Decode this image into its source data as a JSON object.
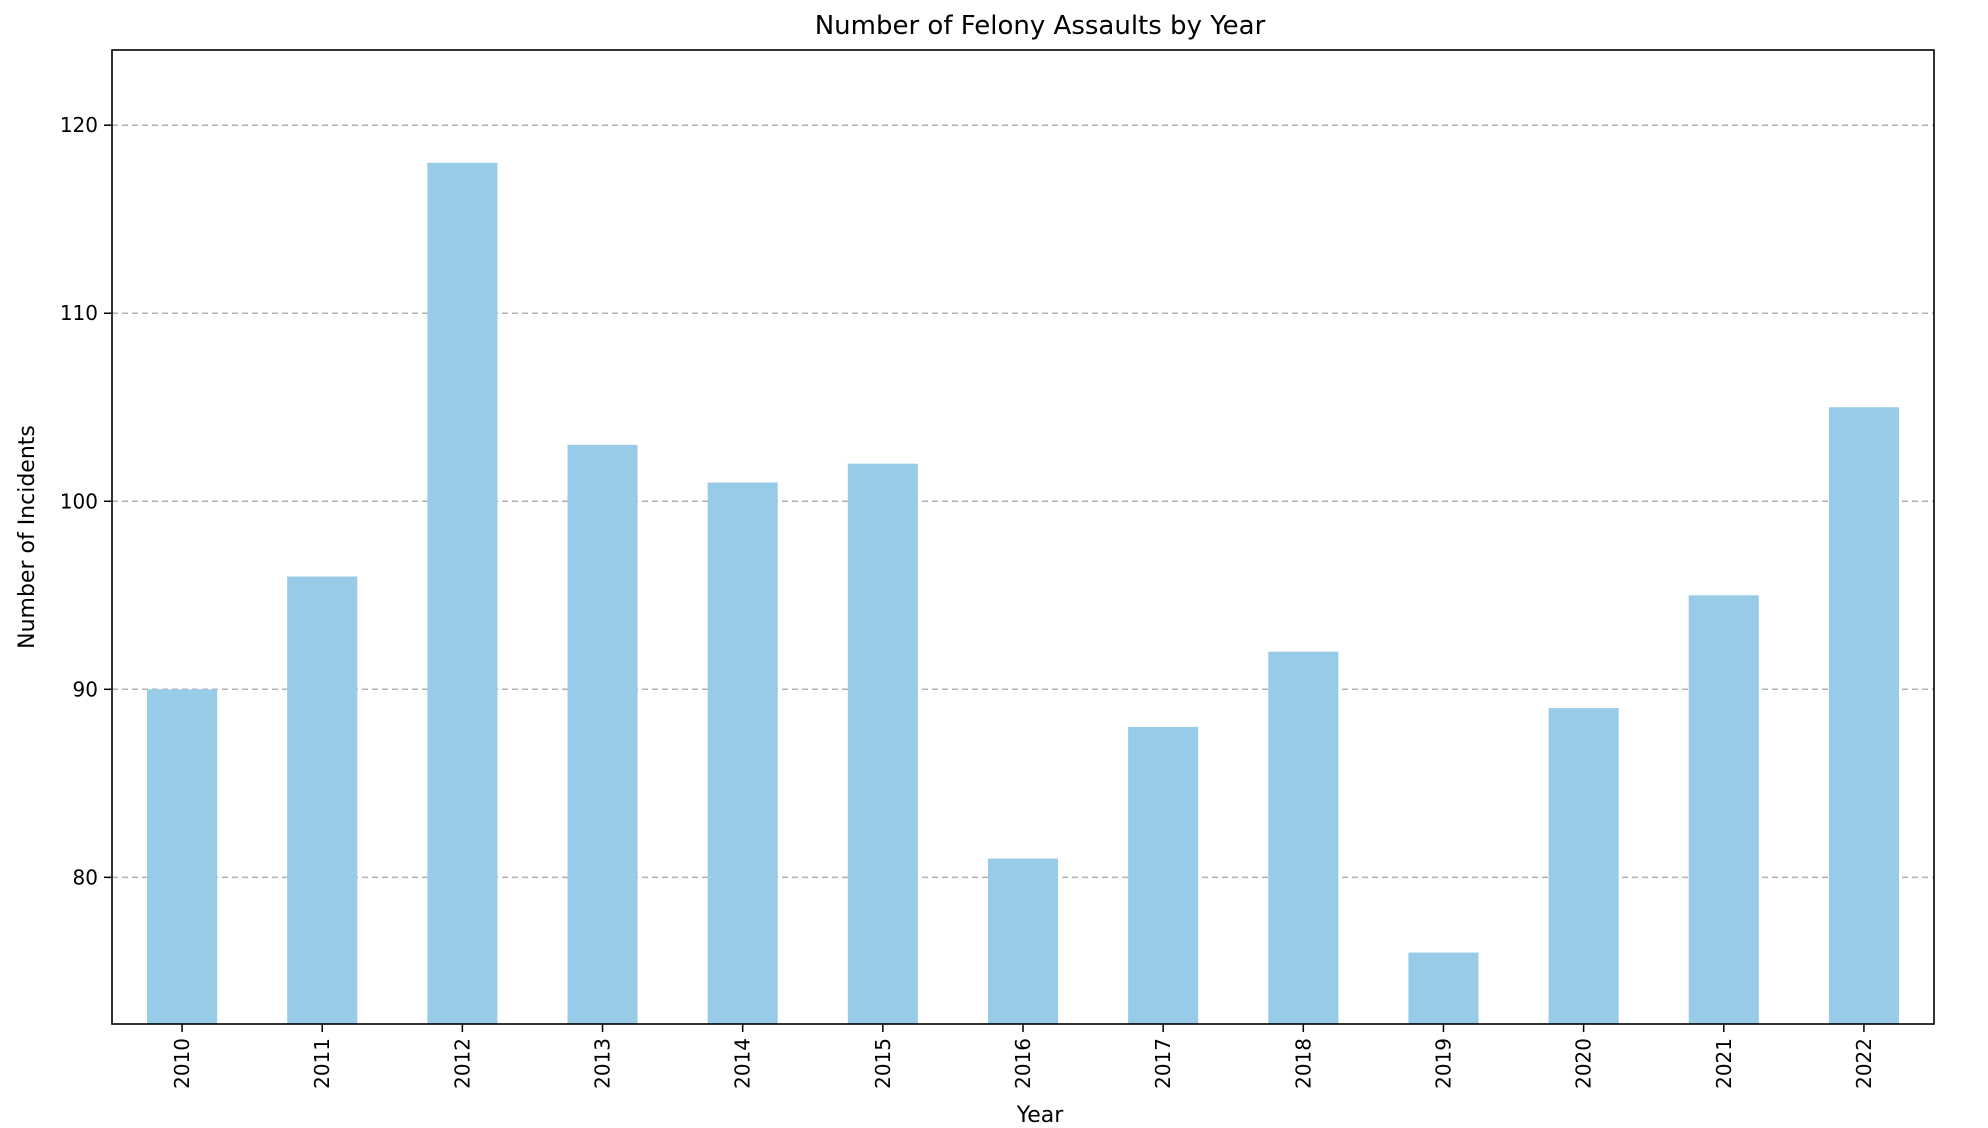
{
  "chart_data": {
    "type": "bar",
    "title": "Number of Felony Assaults by Year",
    "xlabel": "Year",
    "ylabel": "Number of Incidents",
    "categories": [
      "2010",
      "2011",
      "2012",
      "2013",
      "2014",
      "2015",
      "2016",
      "2017",
      "2018",
      "2019",
      "2020",
      "2021",
      "2022"
    ],
    "values": [
      90,
      96,
      118,
      103,
      101,
      102,
      81,
      88,
      92,
      76,
      89,
      95,
      105
    ],
    "yticks": [
      80,
      90,
      100,
      110,
      120
    ],
    "ylim": [
      72.2,
      124
    ],
    "grid": "y-dashed",
    "bar_color": "#97cbe8"
  }
}
